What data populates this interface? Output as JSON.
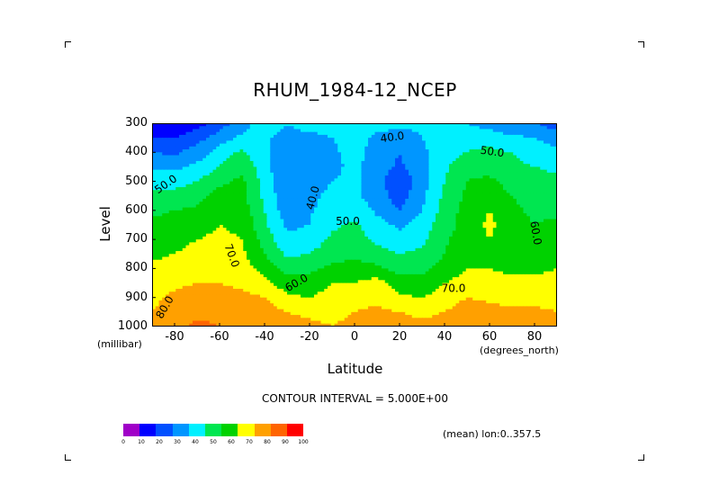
{
  "title": "RHUM_1984-12_NCEP",
  "chart_data": {
    "type": "heatmap",
    "title": "RHUM_1984-12_NCEP",
    "xlabel": "Latitude",
    "ylabel": "Level",
    "x_units": "(degrees_north)",
    "y_units": "(millibar)",
    "xlim": [
      -90,
      90
    ],
    "ylim": [
      1000,
      300
    ],
    "x_ticks": [
      "-80",
      "-60",
      "-40",
      "-20",
      "0",
      "20",
      "40",
      "60",
      "80"
    ],
    "y_ticks": [
      "300",
      "400",
      "500",
      "600",
      "700",
      "800",
      "900",
      "1000"
    ],
    "x": [
      -90,
      -80,
      -70,
      -60,
      -50,
      -40,
      -30,
      -20,
      -10,
      0,
      10,
      20,
      30,
      40,
      50,
      60,
      70,
      80,
      90
    ],
    "y": [
      300,
      350,
      400,
      450,
      500,
      550,
      600,
      650,
      700,
      750,
      800,
      850,
      900,
      950,
      1000
    ],
    "z": [
      [
        14,
        12,
        16,
        25,
        35,
        50,
        40,
        48,
        46,
        47,
        44,
        42,
        42,
        42,
        40,
        35,
        30,
        30,
        25
      ],
      [
        20,
        20,
        26,
        35,
        42,
        42,
        35,
        35,
        40,
        43,
        38,
        36,
        40,
        45,
        48,
        46,
        42,
        40,
        35
      ],
      [
        30,
        28,
        35,
        44,
        52,
        42,
        32,
        32,
        38,
        44,
        36,
        30,
        38,
        46,
        50,
        52,
        50,
        45,
        42
      ],
      [
        38,
        38,
        42,
        50,
        58,
        44,
        30,
        32,
        38,
        42,
        35,
        28,
        36,
        48,
        58,
        56,
        52,
        50,
        48
      ],
      [
        45,
        46,
        50,
        58,
        62,
        46,
        30,
        36,
        40,
        42,
        34,
        22,
        36,
        50,
        60,
        62,
        56,
        54,
        52
      ],
      [
        52,
        54,
        56,
        64,
        62,
        48,
        32,
        38,
        42,
        42,
        35,
        25,
        37,
        52,
        62,
        66,
        60,
        56,
        55
      ],
      [
        58,
        60,
        62,
        68,
        66,
        50,
        34,
        39,
        44,
        46,
        38,
        30,
        40,
        54,
        64,
        70,
        62,
        58,
        58
      ],
      [
        62,
        64,
        66,
        70,
        68,
        52,
        38,
        40,
        48,
        52,
        44,
        38,
        44,
        56,
        64,
        72,
        64,
        60,
        62
      ],
      [
        65,
        68,
        70,
        72,
        70,
        56,
        42,
        44,
        52,
        54,
        48,
        44,
        48,
        58,
        66,
        70,
        66,
        62,
        64
      ],
      [
        68,
        70,
        72,
        74,
        72,
        60,
        48,
        50,
        56,
        58,
        54,
        50,
        52,
        60,
        68,
        70,
        66,
        64,
        66
      ],
      [
        72,
        74,
        76,
        78,
        74,
        66,
        56,
        58,
        62,
        64,
        62,
        56,
        58,
        64,
        70,
        70,
        68,
        68,
        70
      ],
      [
        76,
        78,
        80,
        80,
        78,
        74,
        64,
        64,
        70,
        70,
        74,
        64,
        62,
        70,
        74,
        74,
        72,
        72,
        74
      ],
      [
        78,
        82,
        84,
        84,
        82,
        80,
        72,
        70,
        74,
        76,
        78,
        72,
        70,
        74,
        80,
        78,
        76,
        76,
        78
      ],
      [
        80,
        84,
        88,
        88,
        86,
        84,
        80,
        78,
        78,
        80,
        82,
        80,
        78,
        80,
        86,
        84,
        82,
        82,
        80
      ],
      [
        82,
        86,
        92,
        90,
        88,
        86,
        84,
        82,
        80,
        82,
        84,
        84,
        82,
        84,
        88,
        86,
        84,
        84,
        80
      ]
    ],
    "contour_interval": 5,
    "contour_labels": [
      {
        "text": "40.0",
        "lat": 17,
        "lev": 360,
        "angle": -8
      },
      {
        "text": "50.0",
        "lat": 61,
        "lev": 410,
        "angle": 8
      },
      {
        "text": "50.0",
        "lat": -83,
        "lev": 520,
        "angle": -35
      },
      {
        "text": "40.0",
        "lat": -17,
        "lev": 560,
        "angle": -75
      },
      {
        "text": "50.0",
        "lat": -3,
        "lev": 650,
        "angle": 0
      },
      {
        "text": "60.0",
        "lat": 79,
        "lev": 680,
        "angle": 80
      },
      {
        "text": "70.0",
        "lat": -56,
        "lev": 760,
        "angle": 70
      },
      {
        "text": "60.0",
        "lat": -25,
        "lev": 860,
        "angle": -30
      },
      {
        "text": "70.0",
        "lat": 44,
        "lev": 880,
        "angle": 0
      },
      {
        "text": "80.0",
        "lat": -83,
        "lev": 940,
        "angle": -60
      }
    ],
    "colorbar": {
      "levels": [
        "0",
        "10",
        "20",
        "30",
        "40",
        "50",
        "60",
        "70",
        "80",
        "90",
        "100"
      ],
      "colors": [
        "#a000c8",
        "#0000ff",
        "#0050ff",
        "#0096ff",
        "#00f0ff",
        "#00e650",
        "#00d200",
        "#ffff00",
        "#ffa000",
        "#ff6400",
        "#ff0000"
      ]
    }
  },
  "footer": {
    "contour_interval_text": "CONTOUR INTERVAL = 5.000E+00",
    "mean_text": "(mean) lon:0..357.5"
  }
}
